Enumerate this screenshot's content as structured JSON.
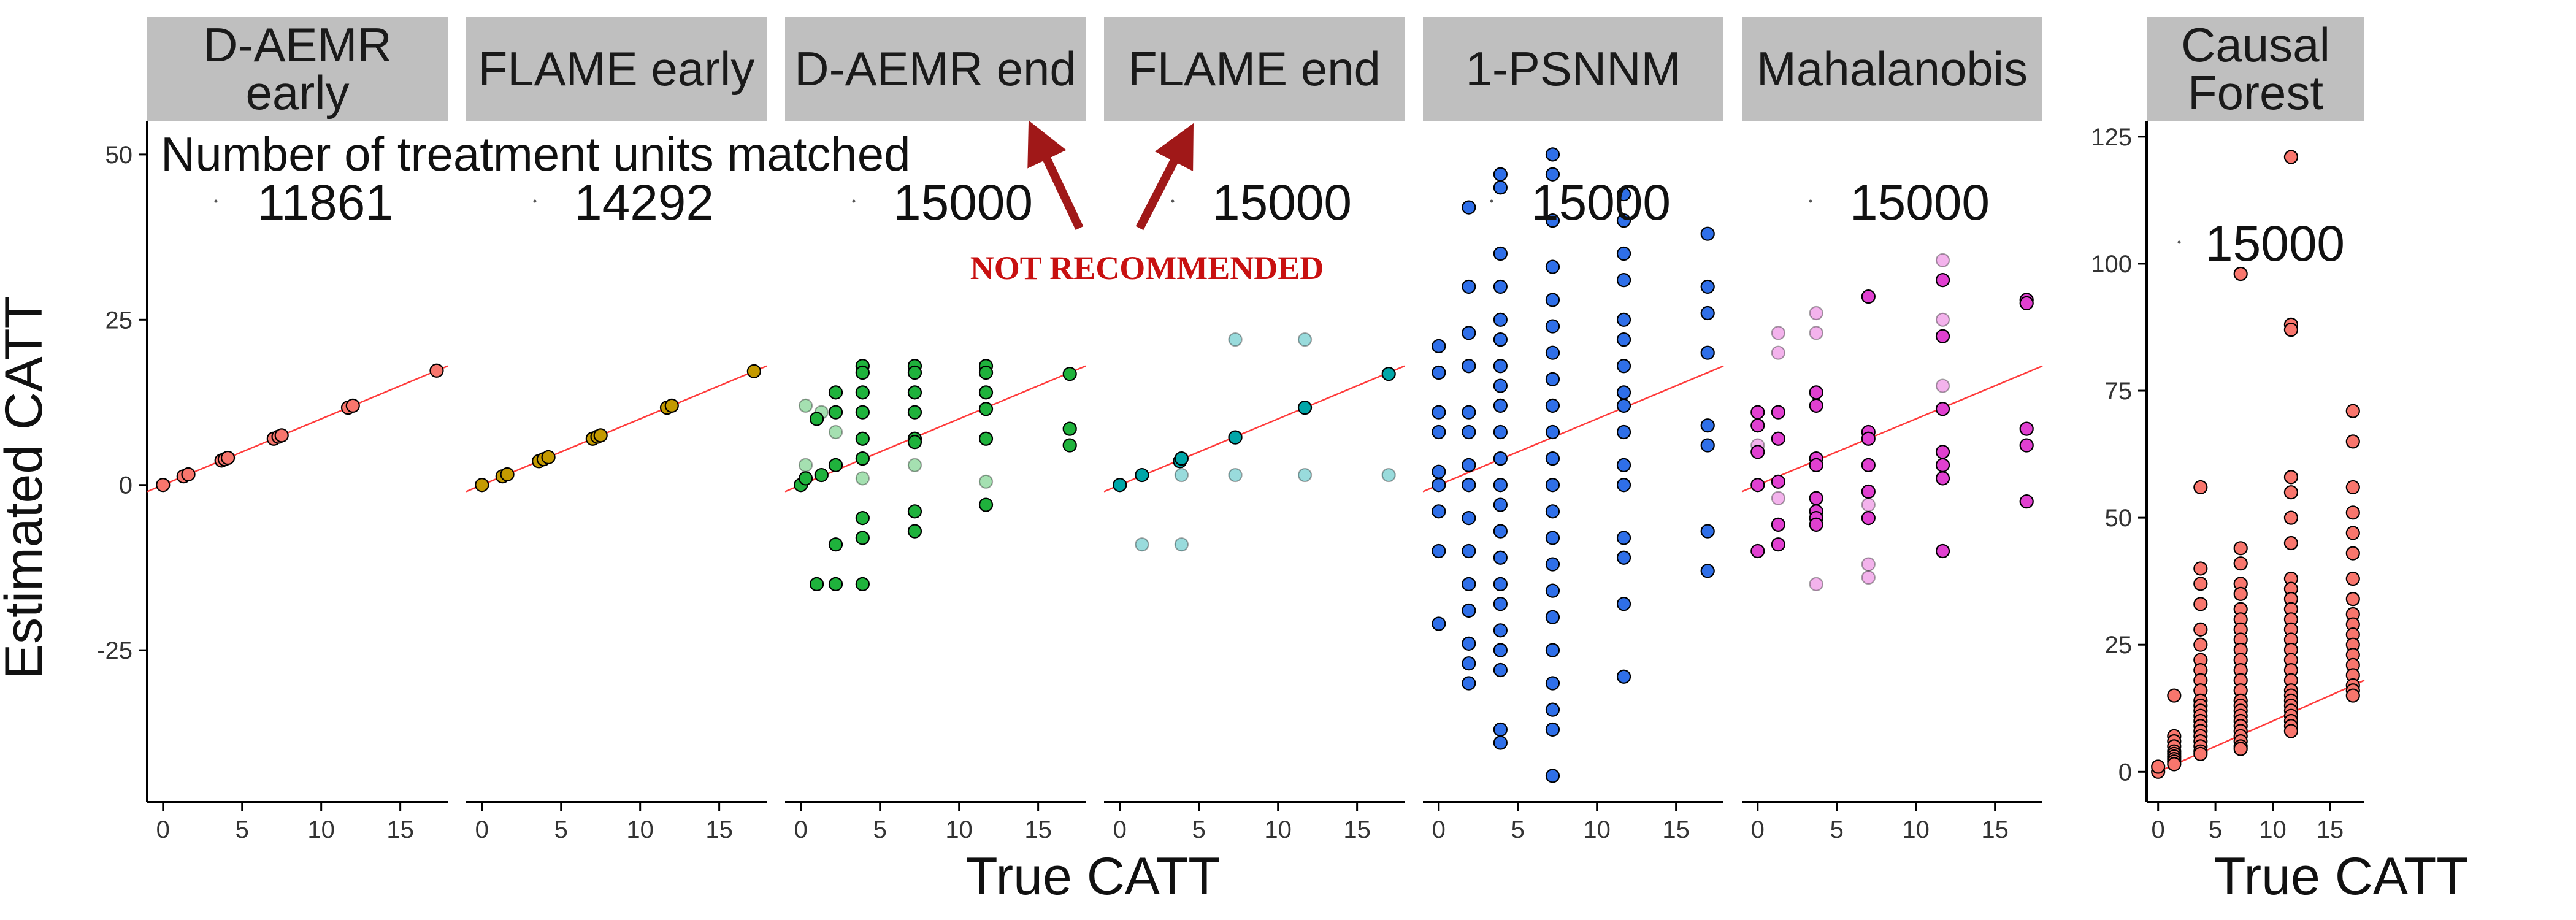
{
  "chart_data": {
    "type": "scatter",
    "y_title": "Estimated CATT",
    "x_title": "True CATT",
    "shared_ylim": [
      -48,
      55
    ],
    "shared_yticks": [
      -25,
      0,
      25,
      50
    ],
    "xlim": [
      -1,
      18
    ],
    "xticks": [
      0,
      5,
      10,
      15
    ],
    "count_label_title": "Number of treatment units matched",
    "annotation": "NOT RECOMMENDED",
    "grid": false,
    "panels": [
      {
        "name": "D-AEMR\nearly",
        "color": "#f8766d",
        "matched": "11861",
        "points": [
          [
            0,
            0
          ],
          [
            1.3,
            1.3
          ],
          [
            1.6,
            1.6
          ],
          [
            3.7,
            3.7
          ],
          [
            3.9,
            3.9
          ],
          [
            4.1,
            4.1
          ],
          [
            7,
            7
          ],
          [
            7.3,
            7.3
          ],
          [
            7.5,
            7.5
          ],
          [
            11.7,
            11.7
          ],
          [
            12,
            12
          ],
          [
            17.3,
            17.3
          ]
        ],
        "faint_points": []
      },
      {
        "name": "FLAME early",
        "color": "#c49a00",
        "matched": "14292",
        "points": [
          [
            0,
            0
          ],
          [
            1.3,
            1.3
          ],
          [
            1.6,
            1.6
          ],
          [
            3.6,
            3.6
          ],
          [
            3.9,
            3.9
          ],
          [
            4.2,
            4.2
          ],
          [
            7,
            7
          ],
          [
            7.3,
            7.3
          ],
          [
            7.5,
            7.5
          ],
          [
            11.7,
            11.7
          ],
          [
            12,
            12
          ],
          [
            17.2,
            17.2
          ]
        ],
        "faint_points": []
      },
      {
        "name": "D-AEMR end",
        "color": "#1fb23c",
        "matched": "15000",
        "points": [
          [
            0,
            0
          ],
          [
            0.3,
            1
          ],
          [
            1,
            10
          ],
          [
            1,
            -15
          ],
          [
            1.3,
            1.5
          ],
          [
            2.2,
            14
          ],
          [
            2.2,
            11
          ],
          [
            2.2,
            3
          ],
          [
            2.2,
            -9
          ],
          [
            2.2,
            -15
          ],
          [
            3.9,
            18
          ],
          [
            3.9,
            17
          ],
          [
            3.9,
            14
          ],
          [
            3.9,
            11
          ],
          [
            3.9,
            7
          ],
          [
            3.9,
            4
          ],
          [
            3.9,
            -5
          ],
          [
            3.9,
            -8
          ],
          [
            3.9,
            -15
          ],
          [
            7.2,
            18
          ],
          [
            7.2,
            17
          ],
          [
            7.2,
            14
          ],
          [
            7.2,
            11
          ],
          [
            7.2,
            7
          ],
          [
            7.2,
            6.5
          ],
          [
            7.2,
            -4
          ],
          [
            7.2,
            -7
          ],
          [
            11.7,
            18
          ],
          [
            11.7,
            17
          ],
          [
            11.7,
            14
          ],
          [
            11.7,
            11.5
          ],
          [
            11.7,
            7
          ],
          [
            11.7,
            -3
          ],
          [
            17,
            16.8
          ],
          [
            17,
            8.5
          ],
          [
            17,
            6
          ]
        ],
        "faint_points": [
          [
            0.3,
            12
          ],
          [
            0.3,
            3
          ],
          [
            1.3,
            11
          ],
          [
            2.2,
            8
          ],
          [
            3.9,
            1
          ],
          [
            7.2,
            3
          ],
          [
            11.7,
            0.5
          ]
        ]
      },
      {
        "name": "FLAME end",
        "color": "#00a6a8",
        "matched": "15000",
        "points": [
          [
            0,
            0
          ],
          [
            1.4,
            1.5
          ],
          [
            3.8,
            3.6
          ],
          [
            3.9,
            4
          ],
          [
            7.3,
            7.2
          ],
          [
            11.7,
            11.7
          ],
          [
            17,
            16.8
          ]
        ],
        "faint_points": [
          [
            1.4,
            -9
          ],
          [
            3.9,
            -9
          ],
          [
            7.3,
            22
          ],
          [
            11.7,
            22
          ],
          [
            3.9,
            1.5
          ],
          [
            7.3,
            1.5
          ],
          [
            11.7,
            1.5
          ],
          [
            17,
            1.5
          ]
        ]
      },
      {
        "name": "1-PSNNM",
        "color": "#2f6fe8",
        "matched": "15000",
        "points": [
          [
            0,
            21
          ],
          [
            0,
            17
          ],
          [
            0,
            11
          ],
          [
            0,
            8
          ],
          [
            0,
            2
          ],
          [
            0,
            0
          ],
          [
            0,
            -4
          ],
          [
            0,
            -10
          ],
          [
            0,
            -21
          ],
          [
            1.9,
            42
          ],
          [
            1.9,
            30
          ],
          [
            1.9,
            23
          ],
          [
            1.9,
            18
          ],
          [
            1.9,
            11
          ],
          [
            1.9,
            8
          ],
          [
            1.9,
            3
          ],
          [
            1.9,
            0
          ],
          [
            1.9,
            -5
          ],
          [
            1.9,
            -10
          ],
          [
            1.9,
            -15
          ],
          [
            1.9,
            -19
          ],
          [
            1.9,
            -24
          ],
          [
            1.9,
            -27
          ],
          [
            1.9,
            -30
          ],
          [
            3.9,
            47
          ],
          [
            3.9,
            45
          ],
          [
            3.9,
            35
          ],
          [
            3.9,
            30
          ],
          [
            3.9,
            25
          ],
          [
            3.9,
            22
          ],
          [
            3.9,
            18
          ],
          [
            3.9,
            15
          ],
          [
            3.9,
            12
          ],
          [
            3.9,
            8
          ],
          [
            3.9,
            4
          ],
          [
            3.9,
            0
          ],
          [
            3.9,
            -3
          ],
          [
            3.9,
            -7
          ],
          [
            3.9,
            -11
          ],
          [
            3.9,
            -15
          ],
          [
            3.9,
            -18
          ],
          [
            3.9,
            -22
          ],
          [
            3.9,
            -25
          ],
          [
            3.9,
            -28
          ],
          [
            3.9,
            -37
          ],
          [
            3.9,
            -39
          ],
          [
            7.2,
            50
          ],
          [
            7.2,
            47
          ],
          [
            7.2,
            40
          ],
          [
            7.2,
            33
          ],
          [
            7.2,
            28
          ],
          [
            7.2,
            24
          ],
          [
            7.2,
            20
          ],
          [
            7.2,
            16
          ],
          [
            7.2,
            12
          ],
          [
            7.2,
            8
          ],
          [
            7.2,
            4
          ],
          [
            7.2,
            0
          ],
          [
            7.2,
            -4
          ],
          [
            7.2,
            -8
          ],
          [
            7.2,
            -12
          ],
          [
            7.2,
            -16
          ],
          [
            7.2,
            -20
          ],
          [
            7.2,
            -25
          ],
          [
            7.2,
            -30
          ],
          [
            7.2,
            -34
          ],
          [
            7.2,
            -37
          ],
          [
            7.2,
            -44
          ],
          [
            11.7,
            44
          ],
          [
            11.7,
            40
          ],
          [
            11.7,
            35
          ],
          [
            11.7,
            31
          ],
          [
            11.7,
            25
          ],
          [
            11.7,
            22
          ],
          [
            11.7,
            18
          ],
          [
            11.7,
            14
          ],
          [
            11.7,
            12
          ],
          [
            11.7,
            8
          ],
          [
            11.7,
            3
          ],
          [
            11.7,
            0
          ],
          [
            11.7,
            -8
          ],
          [
            11.7,
            -11
          ],
          [
            11.7,
            -18
          ],
          [
            11.7,
            -29
          ],
          [
            17,
            38
          ],
          [
            17,
            30
          ],
          [
            17,
            26
          ],
          [
            17,
            20
          ],
          [
            17,
            9
          ],
          [
            17,
            6
          ],
          [
            17,
            -7
          ],
          [
            17,
            -13
          ]
        ],
        "faint_points": []
      },
      {
        "name": "Mahalanobis",
        "color": "#e040d0",
        "matched": "15000",
        "points": [
          [
            0,
            11
          ],
          [
            0,
            9
          ],
          [
            0,
            5
          ],
          [
            0,
            0
          ],
          [
            0,
            -10
          ],
          [
            1.3,
            11
          ],
          [
            1.3,
            7
          ],
          [
            1.3,
            0.5
          ],
          [
            1.3,
            -6
          ],
          [
            1.3,
            -9
          ],
          [
            3.7,
            14
          ],
          [
            3.7,
            12
          ],
          [
            3.7,
            4
          ],
          [
            3.7,
            3
          ],
          [
            3.7,
            -2
          ],
          [
            3.7,
            -4
          ],
          [
            3.7,
            -5
          ],
          [
            3.7,
            -6
          ],
          [
            7,
            28.5
          ],
          [
            7,
            8
          ],
          [
            7,
            7
          ],
          [
            7,
            3
          ],
          [
            7,
            -1
          ],
          [
            7,
            -5
          ],
          [
            11.7,
            31
          ],
          [
            11.7,
            22.5
          ],
          [
            11.7,
            11.5
          ],
          [
            11.7,
            5
          ],
          [
            11.7,
            3
          ],
          [
            11.7,
            1
          ],
          [
            11.7,
            -10
          ],
          [
            17,
            28
          ],
          [
            17,
            27.5
          ],
          [
            17,
            8.5
          ],
          [
            17,
            6
          ],
          [
            17,
            -2.5
          ]
        ],
        "faint_points": [
          [
            0,
            6
          ],
          [
            1.3,
            -2
          ],
          [
            1.3,
            20
          ],
          [
            1.3,
            23
          ],
          [
            3.7,
            23
          ],
          [
            3.7,
            26
          ],
          [
            3.7,
            -15
          ],
          [
            7,
            -12
          ],
          [
            7,
            -14
          ],
          [
            7,
            -3
          ],
          [
            11.7,
            34
          ],
          [
            11.7,
            25
          ],
          [
            11.7,
            15
          ]
        ]
      }
    ],
    "causal_forest": {
      "name": "Causal\nForest",
      "color": "#f8766d",
      "matched": "15000",
      "ylim": [
        -6,
        128
      ],
      "yticks": [
        0,
        25,
        50,
        75,
        100,
        125
      ],
      "points": [
        [
          0,
          0
        ],
        [
          0,
          1
        ],
        [
          1.4,
          15
        ],
        [
          1.4,
          7
        ],
        [
          1.4,
          6
        ],
        [
          1.4,
          5
        ],
        [
          1.4,
          4
        ],
        [
          1.4,
          3.5
        ],
        [
          1.4,
          3
        ],
        [
          1.4,
          2.5
        ],
        [
          1.4,
          2
        ],
        [
          1.4,
          1.5
        ],
        [
          3.7,
          56
        ],
        [
          3.7,
          40
        ],
        [
          3.7,
          37
        ],
        [
          3.7,
          33
        ],
        [
          3.7,
          28
        ],
        [
          3.7,
          25
        ],
        [
          3.7,
          22
        ],
        [
          3.7,
          20
        ],
        [
          3.7,
          18
        ],
        [
          3.7,
          16
        ],
        [
          3.7,
          14
        ],
        [
          3.7,
          13
        ],
        [
          3.7,
          12
        ],
        [
          3.7,
          11
        ],
        [
          3.7,
          10
        ],
        [
          3.7,
          9
        ],
        [
          3.7,
          8
        ],
        [
          3.7,
          7
        ],
        [
          3.7,
          6
        ],
        [
          3.7,
          5
        ],
        [
          3.7,
          4
        ],
        [
          3.7,
          3.5
        ],
        [
          7.2,
          98
        ],
        [
          7.2,
          44
        ],
        [
          7.2,
          41
        ],
        [
          7.2,
          37
        ],
        [
          7.2,
          35
        ],
        [
          7.2,
          32
        ],
        [
          7.2,
          30
        ],
        [
          7.2,
          28
        ],
        [
          7.2,
          26
        ],
        [
          7.2,
          24
        ],
        [
          7.2,
          22
        ],
        [
          7.2,
          20
        ],
        [
          7.2,
          18
        ],
        [
          7.2,
          16
        ],
        [
          7.2,
          14
        ],
        [
          7.2,
          13
        ],
        [
          7.2,
          12
        ],
        [
          7.2,
          11
        ],
        [
          7.2,
          10
        ],
        [
          7.2,
          9
        ],
        [
          7.2,
          8
        ],
        [
          7.2,
          7
        ],
        [
          7.2,
          6
        ],
        [
          7.2,
          5
        ],
        [
          7.2,
          4.5
        ],
        [
          11.6,
          121
        ],
        [
          11.6,
          88
        ],
        [
          11.6,
          87
        ],
        [
          11.6,
          58
        ],
        [
          11.6,
          55
        ],
        [
          11.6,
          50
        ],
        [
          11.6,
          45
        ],
        [
          11.6,
          38
        ],
        [
          11.6,
          36
        ],
        [
          11.6,
          34
        ],
        [
          11.6,
          32
        ],
        [
          11.6,
          30
        ],
        [
          11.6,
          28
        ],
        [
          11.6,
          26
        ],
        [
          11.6,
          24
        ],
        [
          11.6,
          22
        ],
        [
          11.6,
          20
        ],
        [
          11.6,
          18
        ],
        [
          11.6,
          16
        ],
        [
          11.6,
          15
        ],
        [
          11.6,
          14
        ],
        [
          11.6,
          13
        ],
        [
          11.6,
          12
        ],
        [
          11.6,
          11
        ],
        [
          11.6,
          10
        ],
        [
          11.6,
          9
        ],
        [
          11.6,
          8
        ],
        [
          17,
          71
        ],
        [
          17,
          65
        ],
        [
          17,
          56
        ],
        [
          17,
          51
        ],
        [
          17,
          47
        ],
        [
          17,
          43
        ],
        [
          17,
          38
        ],
        [
          17,
          34
        ],
        [
          17,
          31
        ],
        [
          17,
          29
        ],
        [
          17,
          27
        ],
        [
          17,
          25
        ],
        [
          17,
          23
        ],
        [
          17,
          21
        ],
        [
          17,
          19
        ],
        [
          17,
          17
        ],
        [
          17,
          16
        ],
        [
          17,
          15
        ]
      ]
    }
  }
}
